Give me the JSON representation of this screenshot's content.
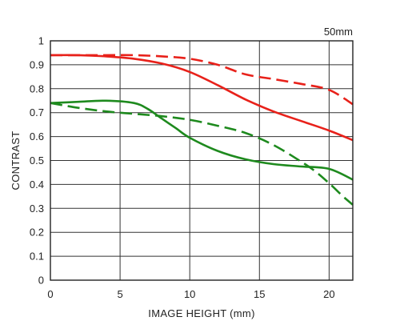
{
  "chart_data": {
    "type": "line",
    "annotation": "50mm",
    "xlabel": "IMAGE HEIGHT (mm)",
    "ylabel": "CONTRAST",
    "xlim": [
      0,
      21.7
    ],
    "ylim": [
      0,
      1
    ],
    "grid": true,
    "x_ticks": [
      0,
      5,
      10,
      15,
      20
    ],
    "x_tick_labels": [
      "0",
      "5",
      "10",
      "15",
      "20"
    ],
    "y_ticks": [
      0,
      0.1,
      0.2,
      0.3,
      0.4,
      0.5,
      0.6,
      0.7,
      0.8,
      0.9,
      1
    ],
    "y_tick_labels": [
      "0",
      "0.1",
      "0.2",
      "0.3",
      "0.4",
      "0.5",
      "0.6",
      "0.7",
      "0.8",
      "0.9",
      "1"
    ],
    "series": [
      {
        "color": "#e8211a",
        "style": "solid",
        "x": [
          0,
          2,
          4,
          6,
          8,
          10,
          12,
          14,
          16,
          18,
          20,
          21.7
        ],
        "y": [
          0.94,
          0.94,
          0.935,
          0.925,
          0.905,
          0.87,
          0.815,
          0.755,
          0.705,
          0.665,
          0.625,
          0.585
        ]
      },
      {
        "color": "#e8211a",
        "style": "dashed",
        "x": [
          0,
          2,
          4,
          6,
          8,
          10,
          12,
          14,
          16,
          18,
          20,
          21.7
        ],
        "y": [
          0.94,
          0.94,
          0.94,
          0.94,
          0.935,
          0.925,
          0.9,
          0.86,
          0.84,
          0.82,
          0.795,
          0.735
        ]
      },
      {
        "color": "#1e8a1e",
        "style": "solid",
        "x": [
          0,
          2,
          4,
          6,
          7,
          8,
          9,
          10,
          12,
          14,
          16,
          18,
          20,
          21.7
        ],
        "y": [
          0.74,
          0.745,
          0.75,
          0.74,
          0.715,
          0.675,
          0.635,
          0.595,
          0.54,
          0.505,
          0.485,
          0.475,
          0.465,
          0.42
        ]
      },
      {
        "color": "#1e8a1e",
        "style": "dashed",
        "x": [
          0,
          2,
          4,
          6,
          8,
          10,
          12,
          14,
          16,
          18,
          19,
          20,
          21,
          21.7
        ],
        "y": [
          0.74,
          0.72,
          0.705,
          0.695,
          0.685,
          0.67,
          0.645,
          0.615,
          0.565,
          0.495,
          0.455,
          0.405,
          0.35,
          0.315
        ]
      }
    ]
  }
}
